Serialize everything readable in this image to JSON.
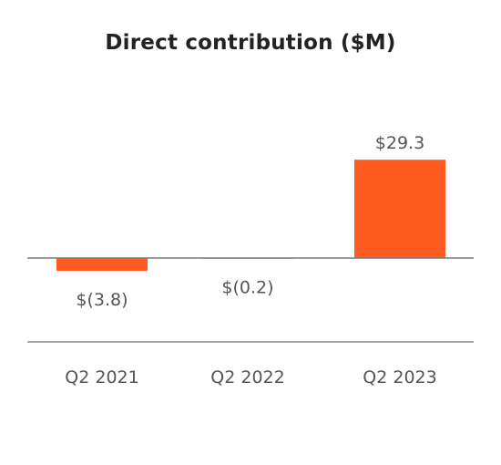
{
  "chart_data": {
    "type": "bar",
    "title": "Direct contribution ($M)",
    "xlabel": "",
    "ylabel": "",
    "categories": [
      "Q2 2021",
      "Q2 2022",
      "Q2 2023"
    ],
    "values": [
      -3.8,
      -0.2,
      29.3
    ],
    "data_labels": [
      "$(3.8)",
      "$(0.2)",
      "$29.3"
    ],
    "ylim": [
      -3.8,
      29.3
    ],
    "grid": false,
    "legend": "none",
    "colors": {
      "bar": "#ff5a1f",
      "baseline": "#7a7a7a",
      "axis_line": "#8a8a8a",
      "label_text": "#555555",
      "title_text": "#222222"
    }
  }
}
